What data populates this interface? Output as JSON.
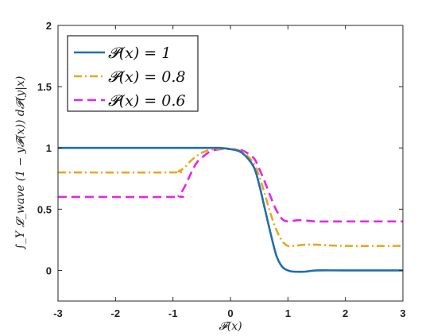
{
  "chart_data": {
    "type": "line",
    "xlabel": "𝓕(x)",
    "ylabel": "∫_Y 𝓛_wave (1 − y𝓕(x)) d𝓟(y|x)",
    "xlim": [
      -3,
      3
    ],
    "ylim": [
      -0.25,
      2
    ],
    "xticks": [
      "-3",
      "-2",
      "-1",
      "0",
      "1",
      "2",
      "3"
    ],
    "yticks": [
      "0",
      "0.5",
      "1",
      "1.5",
      "2"
    ],
    "legend_position": "top-left",
    "grid": false,
    "series": [
      {
        "name": "𝓟(x) = 1",
        "color": "#1f6fb0",
        "dash": "solid",
        "x": [
          -3,
          -1,
          -0.5,
          -0.2,
          0,
          0.2,
          0.4,
          0.5,
          0.6,
          0.7,
          0.8,
          0.9,
          1.0,
          1.1,
          1.3,
          1.5,
          2,
          3
        ],
        "y": [
          1,
          1,
          1,
          1,
          0.99,
          0.96,
          0.85,
          0.7,
          0.5,
          0.3,
          0.12,
          0.03,
          0.0,
          -0.01,
          -0.01,
          0.0,
          0.0,
          0.0
        ]
      },
      {
        "name": "𝓟(x) = 0.8",
        "color": "#e8a81e",
        "dash": "dashdot",
        "x": [
          -3,
          -1,
          -0.9,
          -0.8,
          -0.7,
          -0.6,
          -0.5,
          -0.3,
          0,
          0.2,
          0.4,
          0.5,
          0.6,
          0.7,
          0.8,
          0.9,
          1.0,
          1.1,
          1.3,
          1.5,
          2,
          3
        ],
        "y": [
          0.8,
          0.8,
          0.81,
          0.84,
          0.89,
          0.93,
          0.96,
          0.99,
          0.99,
          0.97,
          0.88,
          0.77,
          0.62,
          0.46,
          0.33,
          0.24,
          0.2,
          0.2,
          0.21,
          0.21,
          0.2,
          0.2
        ]
      },
      {
        "name": "𝓟(x) = 0.6",
        "color": "#e426e4",
        "dash": "dashed",
        "x": [
          -3,
          -1,
          -0.9,
          -0.8,
          -0.7,
          -0.6,
          -0.5,
          -0.3,
          0,
          0.2,
          0.4,
          0.5,
          0.6,
          0.7,
          0.8,
          0.9,
          1.0,
          1.2,
          1.5,
          2,
          3
        ],
        "y": [
          0.6,
          0.6,
          0.61,
          0.68,
          0.78,
          0.87,
          0.92,
          0.98,
          0.99,
          0.98,
          0.92,
          0.83,
          0.72,
          0.6,
          0.49,
          0.42,
          0.4,
          0.41,
          0.4,
          0.4,
          0.4
        ]
      }
    ]
  }
}
